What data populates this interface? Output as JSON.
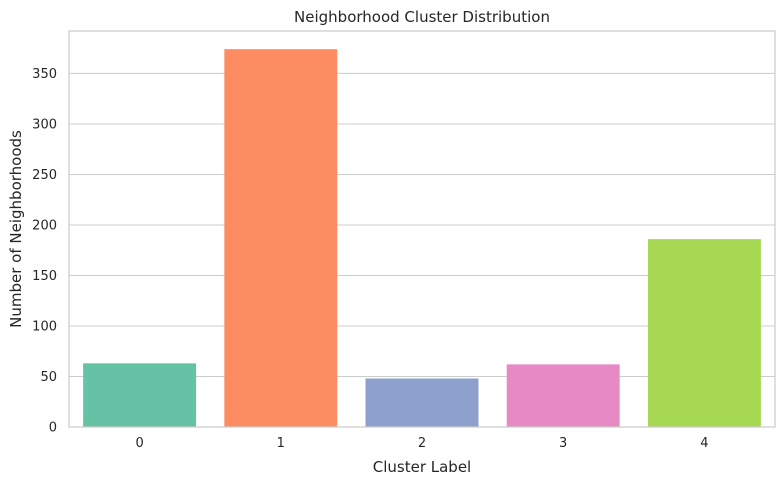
{
  "chart_data": {
    "type": "bar",
    "title": "Neighborhood Cluster Distribution",
    "xlabel": "Cluster Label",
    "ylabel": "Number of Neighborhoods",
    "categories": [
      "0",
      "1",
      "2",
      "3",
      "4"
    ],
    "values": [
      63,
      374,
      48,
      62,
      186
    ],
    "colors": [
      "#66c2a5",
      "#fc8d62",
      "#8da0cb",
      "#e78ac3",
      "#a6d854"
    ],
    "ylim": [
      0,
      392
    ],
    "yticks": [
      0,
      50,
      100,
      150,
      200,
      250,
      300,
      350
    ],
    "grid": true,
    "grid_axis": "y",
    "legend": "none"
  }
}
